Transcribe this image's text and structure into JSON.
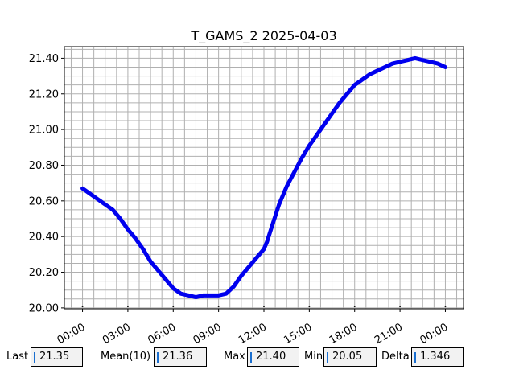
{
  "chart_data": {
    "type": "line",
    "title": "T_GAMS_2 2025-04-03",
    "xlabel": "",
    "ylabel": "",
    "x_unit": "hours",
    "xlim": [
      -1.2,
      25.2
    ],
    "ylim": [
      19.995,
      21.465
    ],
    "x_tick_labels": [
      "00:00",
      "03:00",
      "06:00",
      "09:00",
      "12:00",
      "15:00",
      "18:00",
      "21:00",
      "00:00"
    ],
    "x_tick_values": [
      0,
      3,
      6,
      9,
      12,
      15,
      18,
      21,
      24
    ],
    "y_tick_labels": [
      "20.00",
      "20.20",
      "20.40",
      "20.60",
      "20.80",
      "21.00",
      "21.20",
      "21.40"
    ],
    "y_tick_values": [
      20.0,
      20.2,
      20.4,
      20.6,
      20.8,
      21.0,
      21.2,
      21.4
    ],
    "grid": true,
    "series": [
      {
        "color": "#0000ee",
        "points": [
          [
            0.0,
            20.67
          ],
          [
            0.5,
            20.64
          ],
          [
            1.0,
            20.61
          ],
          [
            1.5,
            20.58
          ],
          [
            2.0,
            20.55
          ],
          [
            2.5,
            20.5
          ],
          [
            3.0,
            20.44
          ],
          [
            3.5,
            20.39
          ],
          [
            4.0,
            20.33
          ],
          [
            4.5,
            20.26
          ],
          [
            5.0,
            20.21
          ],
          [
            5.5,
            20.16
          ],
          [
            6.0,
            20.11
          ],
          [
            6.5,
            20.08
          ],
          [
            7.0,
            20.07
          ],
          [
            7.5,
            20.06
          ],
          [
            8.0,
            20.07
          ],
          [
            8.5,
            20.07
          ],
          [
            9.0,
            20.07
          ],
          [
            9.5,
            20.08
          ],
          [
            10.0,
            20.12
          ],
          [
            10.5,
            20.18
          ],
          [
            11.0,
            20.23
          ],
          [
            11.5,
            20.28
          ],
          [
            12.0,
            20.33
          ],
          [
            12.2,
            20.37
          ],
          [
            12.5,
            20.45
          ],
          [
            13.0,
            20.58
          ],
          [
            13.5,
            20.68
          ],
          [
            14.0,
            20.76
          ],
          [
            14.5,
            20.84
          ],
          [
            15.0,
            20.91
          ],
          [
            15.5,
            20.97
          ],
          [
            16.0,
            21.03
          ],
          [
            16.5,
            21.09
          ],
          [
            17.0,
            21.15
          ],
          [
            17.5,
            21.2
          ],
          [
            18.0,
            21.25
          ],
          [
            18.5,
            21.28
          ],
          [
            19.0,
            21.31
          ],
          [
            19.5,
            21.33
          ],
          [
            20.0,
            21.35
          ],
          [
            20.5,
            21.37
          ],
          [
            21.0,
            21.38
          ],
          [
            21.5,
            21.39
          ],
          [
            22.0,
            21.4
          ],
          [
            22.5,
            21.39
          ],
          [
            23.0,
            21.38
          ],
          [
            23.5,
            21.37
          ],
          [
            24.0,
            21.35
          ]
        ]
      }
    ]
  },
  "stats": {
    "last_label": "Last",
    "last_value": "21.35",
    "mean_label": "Mean(10)",
    "mean_value": "21.36",
    "max_label": "Max",
    "max_value": "21.40",
    "min_label": "Min",
    "min_value": "20.05",
    "delta_label": "Delta",
    "delta_value": "1.346"
  }
}
